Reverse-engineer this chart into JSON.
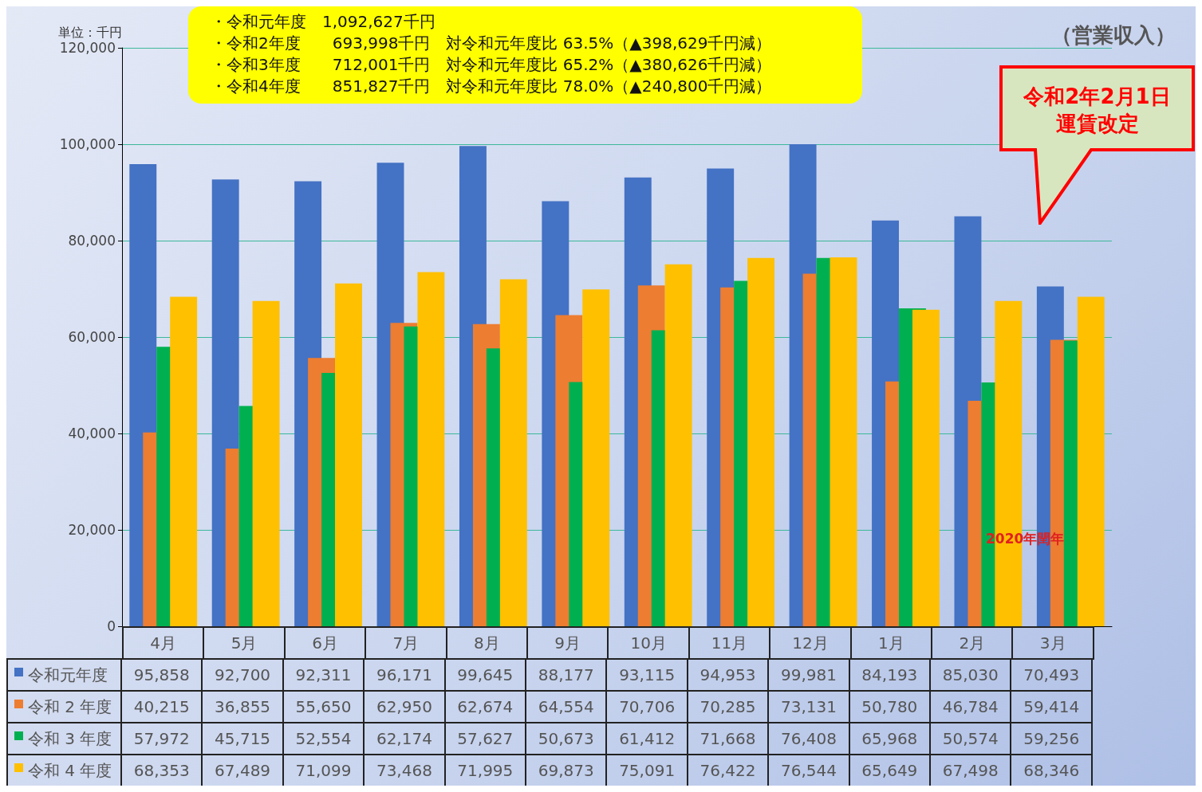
{
  "chart_data": {
    "type": "bar",
    "title": "（営業収入）",
    "ylabel": "単位：千円",
    "categories": [
      "4月",
      "5月",
      "6月",
      "7月",
      "8月",
      "9月",
      "10月",
      "11月",
      "12月",
      "1月",
      "2月",
      "3月"
    ],
    "series": [
      {
        "name": "令和元年度",
        "color": "#4472c4",
        "values": [
          95858,
          92700,
          92311,
          96171,
          99645,
          88177,
          93115,
          94953,
          99981,
          84193,
          85030,
          70493
        ],
        "value_labels": [
          "95,858",
          "92,700",
          "92,311",
          "96,171",
          "99,645",
          "88,177",
          "93,115",
          "94,953",
          "99,981",
          "84,193",
          "85,030",
          "70,493"
        ]
      },
      {
        "name": "令和 2 年度",
        "color": "#ed7d31",
        "values": [
          40215,
          36855,
          55650,
          62950,
          62674,
          64554,
          70706,
          70285,
          73131,
          50780,
          46784,
          59414
        ],
        "value_labels": [
          "40,215",
          "36,855",
          "55,650",
          "62,950",
          "62,674",
          "64,554",
          "70,706",
          "70,285",
          "73,131",
          "50,780",
          "46,784",
          "59,414"
        ]
      },
      {
        "name": "令和 3 年度",
        "color": "#00b050",
        "values": [
          57972,
          45715,
          52554,
          62174,
          57627,
          50673,
          61412,
          71668,
          76408,
          65968,
          50574,
          59256
        ],
        "value_labels": [
          "57,972",
          "45,715",
          "52,554",
          "62,174",
          "57,627",
          "50,673",
          "61,412",
          "71,668",
          "76,408",
          "65,968",
          "50,574",
          "59,256"
        ]
      },
      {
        "name": "令和 4 年度",
        "color": "#ffc000",
        "values": [
          68353,
          67489,
          71099,
          73468,
          71995,
          69873,
          75091,
          76422,
          76544,
          65649,
          67498,
          68346
        ],
        "value_labels": [
          "68,353",
          "67,489",
          "71,099",
          "73,468",
          "71,995",
          "69,873",
          "75,091",
          "76,422",
          "76,544",
          "65,649",
          "67,498",
          "68,346"
        ]
      }
    ],
    "ylim": [
      0,
      120000
    ],
    "yticks": [
      0,
      {
        "value": 20000,
        "label": "20,000"
      },
      {
        "value": 40000,
        "label": "40,000"
      },
      {
        "value": 60000,
        "label": "60,000"
      },
      {
        "value": 80000,
        "label": "80,000"
      },
      {
        "value": 100000,
        "label": "100,000"
      },
      {
        "value": 120000,
        "label": "120,000"
      }
    ],
    "grid": "y",
    "legend": "bottom left",
    "annotations": [
      "・令和元年度　1,092,627千円",
      "・令和2年度　　693,998千円　対令和元年度比 63.5%（▲398,629千円減）",
      "・令和3年度　　712,001千円　対令和元年度比 65.2%（▲380,626千円減）",
      "・令和4年度　　851,827千円　対令和元年度比 78.0%（▲240,800千円減）",
      "令和2年2月1日運賃改定",
      "2020年閏年"
    ]
  }
}
